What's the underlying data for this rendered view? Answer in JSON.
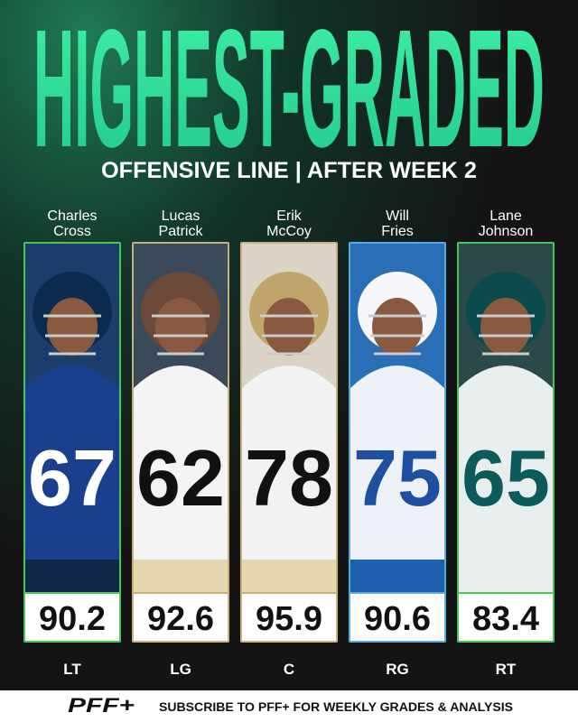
{
  "header": {
    "title": "HIGHEST-GRADED",
    "subtitle": "OFFENSIVE LINE | AFTER WEEK 2"
  },
  "players": [
    {
      "first": "Charles",
      "last": "Cross",
      "jersey": "67",
      "grade": "90.2",
      "position": "LT"
    },
    {
      "first": "Lucas",
      "last": "Patrick",
      "jersey": "62",
      "grade": "92.6",
      "position": "LG"
    },
    {
      "first": "Erik",
      "last": "McCoy",
      "jersey": "78",
      "grade": "95.9",
      "position": "C"
    },
    {
      "first": "Will",
      "last": "Fries",
      "jersey": "75",
      "grade": "90.6",
      "position": "RG"
    },
    {
      "first": "Lane",
      "last": "Johnson",
      "jersey": "65",
      "grade": "83.4",
      "position": "RT"
    }
  ],
  "footer": {
    "logo": "PFF+",
    "text": "SUBSCRIBE TO PFF+ FOR WEEKLY GRADES & ANALYSIS"
  }
}
